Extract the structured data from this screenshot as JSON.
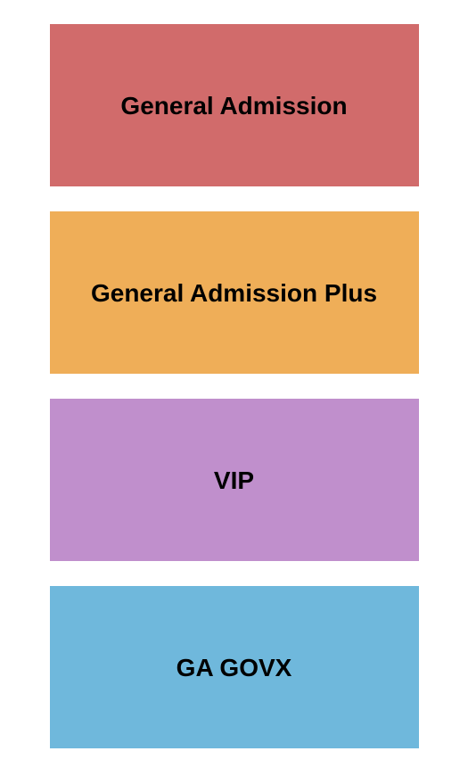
{
  "type": "infographic",
  "background_color": "#ffffff",
  "block_width": 414,
  "block_height": 182,
  "block_gap": 28,
  "font_family": "Arial, Helvetica, sans-serif",
  "font_weight": 700,
  "tiers": [
    {
      "label": "General Admission",
      "bg_color": "#d16b6b",
      "text_color": "#000000",
      "font_size": 28
    },
    {
      "label": "General Admission Plus",
      "bg_color": "#efae58",
      "text_color": "#000000",
      "font_size": 28
    },
    {
      "label": "VIP",
      "bg_color": "#c08fcc",
      "text_color": "#000000",
      "font_size": 28
    },
    {
      "label": "GA GOVX",
      "bg_color": "#6fb8dc",
      "text_color": "#000000",
      "font_size": 28
    }
  ]
}
